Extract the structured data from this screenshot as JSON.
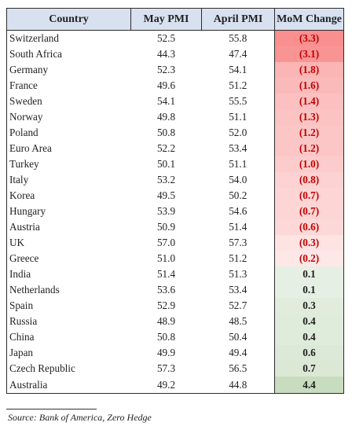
{
  "chart_data": {
    "type": "table",
    "columns": [
      "Country",
      "May PMI",
      "April PMI",
      "MoM Change"
    ],
    "rows": [
      {
        "country": "Switzerland",
        "may": "52.5",
        "april": "55.8",
        "change": "(3.3)",
        "value": -3.3
      },
      {
        "country": "South Africa",
        "may": "44.3",
        "april": "47.4",
        "change": "(3.1)",
        "value": -3.1
      },
      {
        "country": "Germany",
        "may": "52.3",
        "april": "54.1",
        "change": "(1.8)",
        "value": -1.8
      },
      {
        "country": "France",
        "may": "49.6",
        "april": "51.2",
        "change": "(1.6)",
        "value": -1.6
      },
      {
        "country": "Sweden",
        "may": "54.1",
        "april": "55.5",
        "change": "(1.4)",
        "value": -1.4
      },
      {
        "country": "Norway",
        "may": "49.8",
        "april": "51.1",
        "change": "(1.3)",
        "value": -1.3
      },
      {
        "country": "Poland",
        "may": "50.8",
        "april": "52.0",
        "change": "(1.2)",
        "value": -1.2
      },
      {
        "country": "Euro Area",
        "may": "52.2",
        "april": "53.4",
        "change": "(1.2)",
        "value": -1.2
      },
      {
        "country": "Turkey",
        "may": "50.1",
        "april": "51.1",
        "change": "(1.0)",
        "value": -1.0
      },
      {
        "country": "Italy",
        "may": "53.2",
        "april": "54.0",
        "change": "(0.8)",
        "value": -0.8
      },
      {
        "country": "Korea",
        "may": "49.5",
        "april": "50.2",
        "change": "(0.7)",
        "value": -0.7
      },
      {
        "country": "Hungary",
        "may": "53.9",
        "april": "54.6",
        "change": "(0.7)",
        "value": -0.7
      },
      {
        "country": "Austria",
        "may": "50.9",
        "april": "51.4",
        "change": "(0.6)",
        "value": -0.6
      },
      {
        "country": "UK",
        "may": "57.0",
        "april": "57.3",
        "change": "(0.3)",
        "value": -0.3
      },
      {
        "country": "Greece",
        "may": "51.0",
        "april": "51.2",
        "change": "(0.2)",
        "value": -0.2
      },
      {
        "country": "India",
        "may": "51.4",
        "april": "51.3",
        "change": "0.1",
        "value": 0.1
      },
      {
        "country": "Netherlands",
        "may": "53.6",
        "april": "53.4",
        "change": "0.1",
        "value": 0.1
      },
      {
        "country": "Spain",
        "may": "52.9",
        "april": "52.7",
        "change": "0.3",
        "value": 0.3
      },
      {
        "country": "Russia",
        "may": "48.9",
        "april": "48.5",
        "change": "0.4",
        "value": 0.4
      },
      {
        "country": "China",
        "may": "50.8",
        "april": "50.4",
        "change": "0.4",
        "value": 0.4
      },
      {
        "country": "Japan",
        "may": "49.9",
        "april": "49.4",
        "change": "0.6",
        "value": 0.6
      },
      {
        "country": "Czech Republic",
        "may": "57.3",
        "april": "56.5",
        "change": "0.7",
        "value": 0.7
      },
      {
        "country": "Australia",
        "may": "49.2",
        "april": "44.8",
        "change": "4.4",
        "value": 4.4
      }
    ]
  },
  "colors": {
    "header_bg": "#d7e1f0",
    "negative_text": "#c00000",
    "negative_fill_max": "#f98f8f",
    "positive_fill_max": "#c8dcc0"
  },
  "source": "Source: Bank of America, Zero Hedge"
}
